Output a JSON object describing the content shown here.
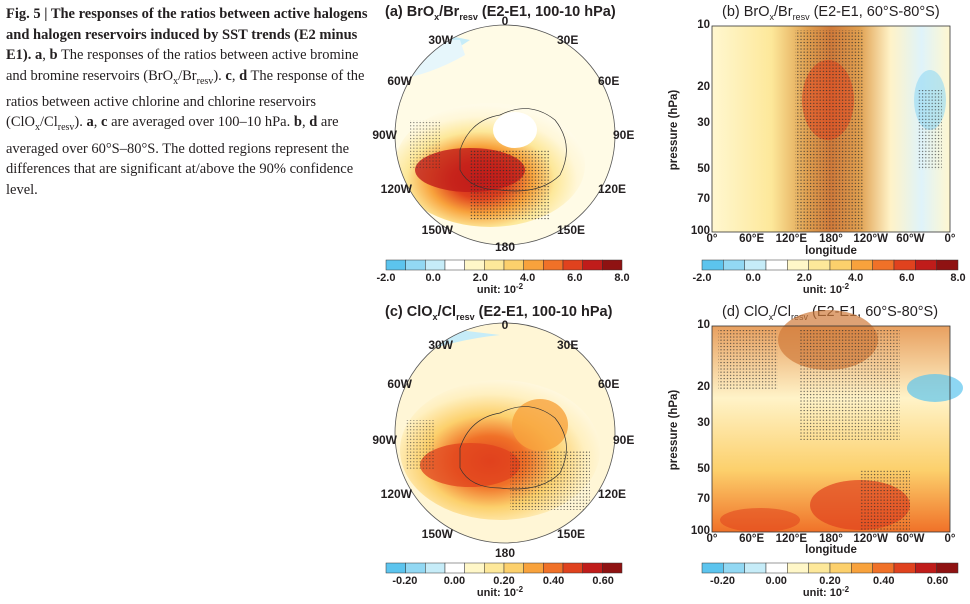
{
  "figure": {
    "caption": {
      "lead": "Fig. 5 | The responses of the ratios between active halogens and halogen reservoirs induced by SST trends (E2 minus E1).",
      "body_segments": [
        {
          "t": " "
        },
        {
          "t": "a",
          "b": true
        },
        {
          "t": ", "
        },
        {
          "t": "b",
          "b": true
        },
        {
          "t": " The responses of the ratios between active bromine and bromine reservoirs (BrO"
        },
        {
          "t": "x",
          "sub": true
        },
        {
          "t": "/Br"
        },
        {
          "t": "resv",
          "sub": true
        },
        {
          "t": "). "
        },
        {
          "t": "c",
          "b": true
        },
        {
          "t": ", "
        },
        {
          "t": "d",
          "b": true
        },
        {
          "t": " The response of the ratios between active chlorine and chlorine reservoirs (ClO"
        },
        {
          "t": "x",
          "sub": true
        },
        {
          "t": "/Cl"
        },
        {
          "t": "resv",
          "sub": true
        },
        {
          "t": "). "
        },
        {
          "t": "a",
          "b": true
        },
        {
          "t": ", "
        },
        {
          "t": "c",
          "b": true
        },
        {
          "t": " are averaged over 100–10 hPa. "
        },
        {
          "t": "b",
          "b": true
        },
        {
          "t": ", "
        },
        {
          "t": "d",
          "b": true
        },
        {
          "t": " are averaged over 60°S–80°S. The dotted regions represent the differences that are significant at/above the 90% confidence level."
        }
      ]
    },
    "panels": {
      "a": {
        "title_pre": "(a) BrO",
        "title_sub1": "x",
        "title_mid": "/Br",
        "title_sub2": "resv",
        "title_post": " (E2-E1, 100-10 hPa)"
      },
      "b": {
        "title_pre": "(b) BrO",
        "title_sub1": "x",
        "title_mid": "/Br",
        "title_sub2": "resv",
        "title_post": " (E2-E1, 60°S-80°S)"
      },
      "c": {
        "title_pre": "(c) ClO",
        "title_sub1": "x",
        "title_mid": "/Cl",
        "title_sub2": "resv",
        "title_post": " (E2-E1, 100-10 hPa)"
      },
      "d": {
        "title_pre": "(d) ClO",
        "title_sub1": "x",
        "title_mid": "/Cl",
        "title_sub2": "resv",
        "title_post": " (E2-E1, 60°S-80°S)"
      }
    },
    "polar_labels": {
      "top": "0",
      "tr": "30E",
      "r1": "60E",
      "r2": "90E",
      "r3": "120E",
      "br": "150E",
      "bottom": "180",
      "bl": "150W",
      "l3": "120W",
      "l2": "90W",
      "l1": "60W",
      "tl": "30W"
    },
    "section_axes": {
      "ylabel": "pressure (hPa)",
      "xlabel": "longitude",
      "yticks": [
        "10",
        "20",
        "30",
        "50",
        "70",
        "100"
      ],
      "xticks": [
        "0°",
        "60°E",
        "120°E",
        "180°",
        "120°W",
        "60°W",
        "0°"
      ]
    },
    "colorbars": {
      "top": {
        "ticks": [
          "-2.0",
          "0.0",
          "2.0",
          "4.0",
          "6.0",
          "8.0"
        ],
        "unit": "unit: 10",
        "unit_exp": "-2"
      },
      "bottom": {
        "ticks": [
          "-0.20",
          "0.00",
          "0.20",
          "0.40",
          "0.60"
        ],
        "unit": "unit: 10",
        "unit_exp": "-2"
      }
    },
    "colors": {
      "scale": [
        "#5cc4ee",
        "#92d8f3",
        "#c6ecf8",
        "#ffffff",
        "#fff7c8",
        "#fde89a",
        "#fcd06c",
        "#f8a23c",
        "#f07128",
        "#e0421e",
        "#c01c1a",
        "#8f1212"
      ]
    }
  }
}
